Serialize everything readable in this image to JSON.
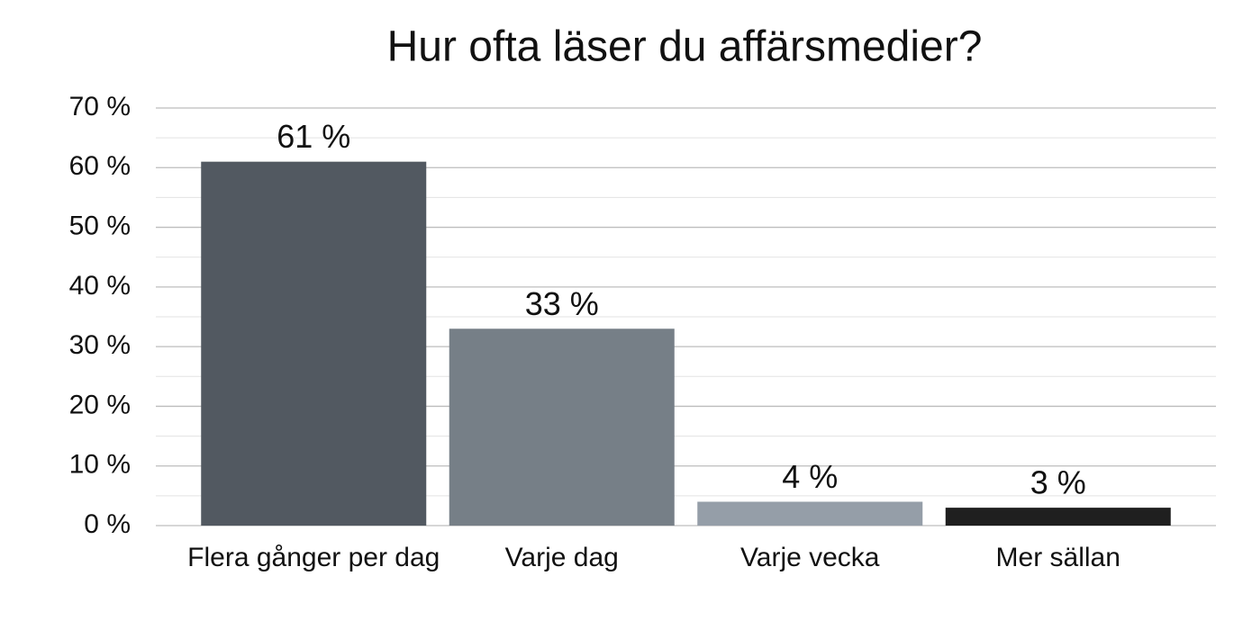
{
  "chart_data": {
    "type": "bar",
    "title": "Hur ofta läser du affärsmedier?",
    "categories": [
      "Flera gånger per dag",
      "Varje dag",
      "Varje vecka",
      "Mer sällan"
    ],
    "values": [
      61,
      33,
      4,
      3
    ],
    "value_labels": [
      "61 %",
      "33 %",
      "4 %",
      "3 %"
    ],
    "colors": [
      "#525961",
      "#767f87",
      "#959ea8",
      "#1f1f1f"
    ],
    "ylim": [
      0,
      70
    ],
    "yticks": [
      {
        "value": 0,
        "label": "0 %"
      },
      {
        "value": 10,
        "label": "10 %"
      },
      {
        "value": 20,
        "label": "20 %"
      },
      {
        "value": 30,
        "label": "30 %"
      },
      {
        "value": 40,
        "label": "40 %"
      },
      {
        "value": 50,
        "label": "50 %"
      },
      {
        "value": 60,
        "label": "60 %"
      },
      {
        "value": 70,
        "label": "70 %"
      }
    ],
    "minor_yticks": [
      5,
      15,
      25,
      35,
      45,
      55,
      65
    ],
    "grid": true
  }
}
